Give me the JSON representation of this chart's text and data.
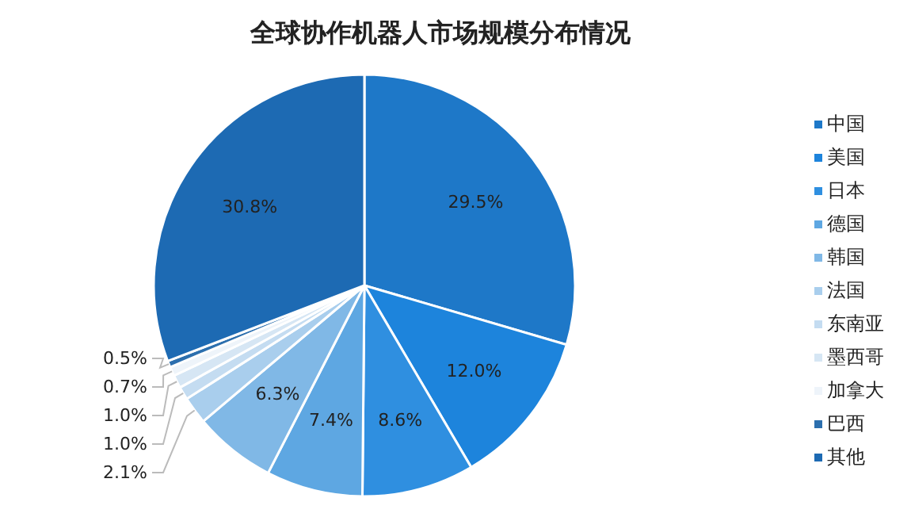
{
  "chart_data": {
    "type": "pie",
    "title": "全球协作机器人市场规模分布情况",
    "categories": [
      "中国",
      "美国",
      "日本",
      "德国",
      "韩国",
      "法国",
      "东南亚",
      "墨西哥",
      "加拿大",
      "巴西",
      "其他"
    ],
    "values": [
      29.5,
      12.0,
      8.6,
      7.4,
      6.3,
      2.1,
      1.0,
      1.0,
      0.7,
      0.5,
      30.8
    ],
    "value_labels": [
      "29.5%",
      "12.0%",
      "8.6%",
      "7.4%",
      "6.3%",
      "2.1%",
      "1.0%",
      "1.0%",
      "0.7%",
      "0.5%",
      "30.8%"
    ],
    "colors": [
      "#1e78c8",
      "#1d84dc",
      "#2f8fe0",
      "#5ea7e2",
      "#80b8e6",
      "#a9ceed",
      "#c4dcf1",
      "#d6e6f4",
      "#eef4fa",
      "#2c6fae",
      "#1d6ab3"
    ],
    "legend": "right"
  }
}
